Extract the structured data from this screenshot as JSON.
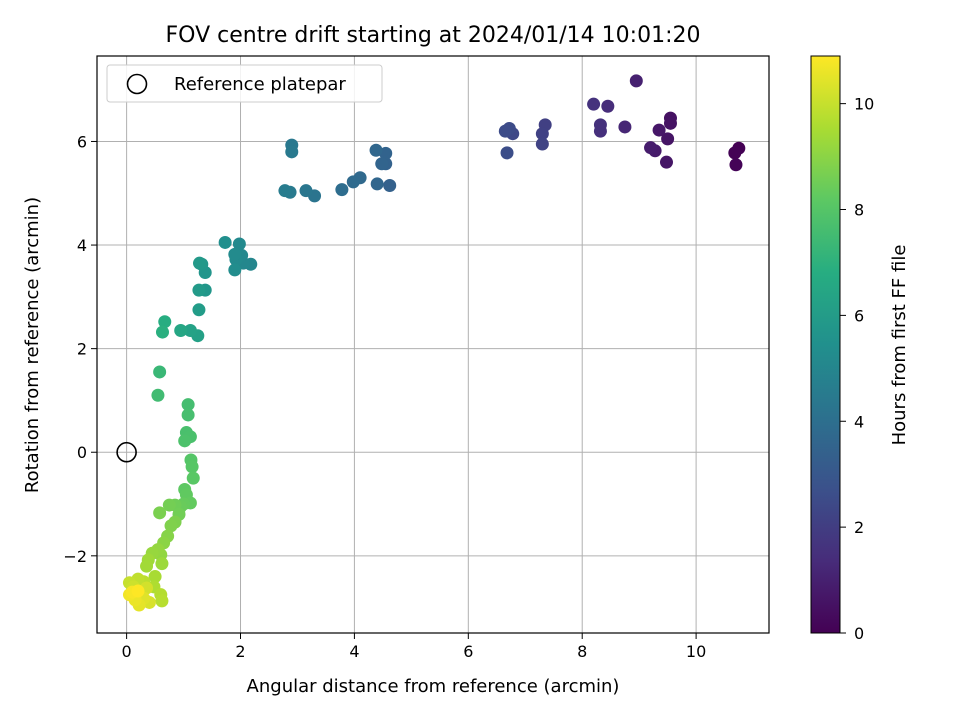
{
  "chart_data": {
    "type": "scatter",
    "title": "FOV centre drift starting at 2024/01/14 10:01:20",
    "xlabel": "Angular distance from reference (arcmin)",
    "ylabel": "Rotation from reference (arcmin)",
    "xlim": [
      -0.52,
      11.28
    ],
    "ylim": [
      -3.49,
      7.65
    ],
    "xticks": [
      0,
      2,
      4,
      6,
      8,
      10
    ],
    "yticks": [
      -2,
      0,
      2,
      4,
      6
    ],
    "ytick_labels": [
      "−2",
      "0",
      "2",
      "4",
      "6"
    ],
    "grid": true,
    "legend": {
      "placement": "top-left",
      "entries": [
        "Reference platepar"
      ]
    },
    "reference_point": {
      "x": 0,
      "y": 0,
      "label": "Reference platepar"
    },
    "colorbar": {
      "label": "Hours from first FF file",
      "range": [
        0,
        10.9
      ],
      "ticks": [
        0,
        2,
        4,
        6,
        8,
        10
      ],
      "colormap": "viridis"
    },
    "points": [
      {
        "x": 10.75,
        "y": 5.87,
        "t": 0.0
      },
      {
        "x": 10.68,
        "y": 5.78,
        "t": 0.05
      },
      {
        "x": 10.7,
        "y": 5.55,
        "t": 0.1
      },
      {
        "x": 9.55,
        "y": 6.45,
        "t": 0.5
      },
      {
        "x": 9.55,
        "y": 6.35,
        "t": 0.55
      },
      {
        "x": 9.5,
        "y": 6.05,
        "t": 0.6
      },
      {
        "x": 9.48,
        "y": 5.6,
        "t": 0.65
      },
      {
        "x": 9.35,
        "y": 6.22,
        "t": 0.7
      },
      {
        "x": 9.28,
        "y": 5.82,
        "t": 0.8
      },
      {
        "x": 9.2,
        "y": 5.88,
        "t": 0.85
      },
      {
        "x": 8.95,
        "y": 7.17,
        "t": 1.0
      },
      {
        "x": 8.75,
        "y": 6.28,
        "t": 1.2
      },
      {
        "x": 8.45,
        "y": 6.68,
        "t": 1.4
      },
      {
        "x": 8.32,
        "y": 6.2,
        "t": 1.5
      },
      {
        "x": 8.32,
        "y": 6.32,
        "t": 1.55
      },
      {
        "x": 8.2,
        "y": 6.72,
        "t": 1.6
      },
      {
        "x": 7.35,
        "y": 6.32,
        "t": 2.1
      },
      {
        "x": 7.3,
        "y": 6.15,
        "t": 2.15
      },
      {
        "x": 7.3,
        "y": 5.95,
        "t": 2.2
      },
      {
        "x": 6.78,
        "y": 6.15,
        "t": 2.4
      },
      {
        "x": 6.72,
        "y": 6.25,
        "t": 2.5
      },
      {
        "x": 6.65,
        "y": 6.2,
        "t": 2.55
      },
      {
        "x": 6.68,
        "y": 5.78,
        "t": 2.6
      },
      {
        "x": 4.62,
        "y": 5.15,
        "t": 3.4
      },
      {
        "x": 4.55,
        "y": 5.57,
        "t": 3.45
      },
      {
        "x": 4.55,
        "y": 5.77,
        "t": 3.5
      },
      {
        "x": 4.48,
        "y": 5.57,
        "t": 3.55
      },
      {
        "x": 4.4,
        "y": 5.18,
        "t": 3.6
      },
      {
        "x": 4.38,
        "y": 5.83,
        "t": 3.65
      },
      {
        "x": 4.1,
        "y": 5.3,
        "t": 3.75
      },
      {
        "x": 3.98,
        "y": 5.22,
        "t": 3.8
      },
      {
        "x": 3.78,
        "y": 5.07,
        "t": 3.9
      },
      {
        "x": 3.3,
        "y": 4.95,
        "t": 4.2
      },
      {
        "x": 3.15,
        "y": 5.05,
        "t": 4.3
      },
      {
        "x": 2.9,
        "y": 5.93,
        "t": 4.4
      },
      {
        "x": 2.9,
        "y": 5.8,
        "t": 4.45
      },
      {
        "x": 2.87,
        "y": 5.02,
        "t": 4.5
      },
      {
        "x": 2.78,
        "y": 5.05,
        "t": 4.55
      },
      {
        "x": 2.18,
        "y": 3.63,
        "t": 5.0
      },
      {
        "x": 2.05,
        "y": 3.65,
        "t": 5.05
      },
      {
        "x": 2.02,
        "y": 3.8,
        "t": 5.1
      },
      {
        "x": 1.98,
        "y": 4.02,
        "t": 5.15
      },
      {
        "x": 1.92,
        "y": 3.72,
        "t": 5.2
      },
      {
        "x": 1.9,
        "y": 3.82,
        "t": 5.25
      },
      {
        "x": 1.9,
        "y": 3.52,
        "t": 5.3
      },
      {
        "x": 1.73,
        "y": 4.05,
        "t": 5.4
      },
      {
        "x": 1.38,
        "y": 3.47,
        "t": 5.7
      },
      {
        "x": 1.38,
        "y": 3.13,
        "t": 5.75
      },
      {
        "x": 1.32,
        "y": 3.63,
        "t": 5.8
      },
      {
        "x": 1.28,
        "y": 3.65,
        "t": 5.85
      },
      {
        "x": 1.27,
        "y": 3.13,
        "t": 5.9
      },
      {
        "x": 1.27,
        "y": 2.75,
        "t": 6.0
      },
      {
        "x": 1.25,
        "y": 2.25,
        "t": 6.2
      },
      {
        "x": 1.12,
        "y": 2.35,
        "t": 6.3
      },
      {
        "x": 0.95,
        "y": 2.35,
        "t": 6.5
      },
      {
        "x": 0.67,
        "y": 2.52,
        "t": 6.8
      },
      {
        "x": 0.63,
        "y": 2.32,
        "t": 6.9
      },
      {
        "x": 0.58,
        "y": 1.55,
        "t": 7.3
      },
      {
        "x": 0.55,
        "y": 1.1,
        "t": 7.5
      },
      {
        "x": 1.08,
        "y": 0.92,
        "t": 7.6
      },
      {
        "x": 1.08,
        "y": 0.72,
        "t": 7.65
      },
      {
        "x": 1.05,
        "y": 0.38,
        "t": 7.7
      },
      {
        "x": 1.12,
        "y": 0.3,
        "t": 7.75
      },
      {
        "x": 1.02,
        "y": 0.22,
        "t": 7.8
      },
      {
        "x": 1.13,
        "y": -0.15,
        "t": 8.0
      },
      {
        "x": 1.15,
        "y": -0.28,
        "t": 8.05
      },
      {
        "x": 1.17,
        "y": -0.5,
        "t": 8.1
      },
      {
        "x": 1.02,
        "y": -0.72,
        "t": 8.2
      },
      {
        "x": 1.05,
        "y": -0.82,
        "t": 8.25
      },
      {
        "x": 1.12,
        "y": -0.98,
        "t": 8.3
      },
      {
        "x": 1.0,
        "y": -1.0,
        "t": 8.35
      },
      {
        "x": 0.95,
        "y": -1.05,
        "t": 8.4
      },
      {
        "x": 0.85,
        "y": -1.02,
        "t": 8.5
      },
      {
        "x": 0.92,
        "y": -1.2,
        "t": 8.55
      },
      {
        "x": 0.75,
        "y": -1.02,
        "t": 8.6
      },
      {
        "x": 0.58,
        "y": -1.17,
        "t": 8.7
      },
      {
        "x": 0.85,
        "y": -1.35,
        "t": 8.75
      },
      {
        "x": 0.78,
        "y": -1.42,
        "t": 8.8
      },
      {
        "x": 0.72,
        "y": -1.62,
        "t": 8.9
      },
      {
        "x": 0.65,
        "y": -1.75,
        "t": 9.0
      },
      {
        "x": 0.6,
        "y": -1.98,
        "t": 9.1
      },
      {
        "x": 0.55,
        "y": -1.88,
        "t": 9.15
      },
      {
        "x": 0.45,
        "y": -1.95,
        "t": 9.2
      },
      {
        "x": 0.62,
        "y": -2.15,
        "t": 9.3
      },
      {
        "x": 0.38,
        "y": -2.08,
        "t": 9.35
      },
      {
        "x": 0.35,
        "y": -2.2,
        "t": 9.4
      },
      {
        "x": 0.5,
        "y": -2.4,
        "t": 9.5
      },
      {
        "x": 0.48,
        "y": -2.6,
        "t": 9.6
      },
      {
        "x": 0.6,
        "y": -2.75,
        "t": 9.7
      },
      {
        "x": 0.62,
        "y": -2.87,
        "t": 9.75
      },
      {
        "x": 0.3,
        "y": -2.5,
        "t": 9.8
      },
      {
        "x": 0.2,
        "y": -2.45,
        "t": 9.9
      },
      {
        "x": 0.05,
        "y": -2.52,
        "t": 10.0
      },
      {
        "x": 0.12,
        "y": -2.6,
        "t": 10.1
      },
      {
        "x": 0.35,
        "y": -2.62,
        "t": 10.2
      },
      {
        "x": 0.4,
        "y": -2.9,
        "t": 10.3
      },
      {
        "x": 0.3,
        "y": -2.82,
        "t": 10.4
      },
      {
        "x": 0.22,
        "y": -2.95,
        "t": 10.5
      },
      {
        "x": 0.15,
        "y": -2.85,
        "t": 10.6
      },
      {
        "x": 0.05,
        "y": -2.75,
        "t": 10.7
      },
      {
        "x": 0.1,
        "y": -2.7,
        "t": 10.8
      },
      {
        "x": 0.2,
        "y": -2.68,
        "t": 10.9
      }
    ]
  }
}
